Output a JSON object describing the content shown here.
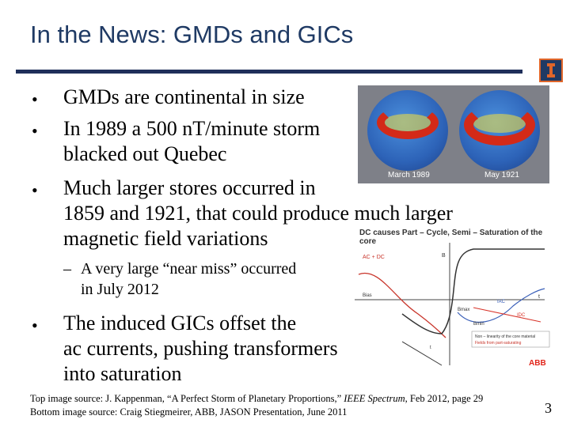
{
  "title": "In the News: GMDs and GICs",
  "bullets": [
    {
      "marker": "•",
      "lines": [
        "GMDs are continental in size"
      ]
    },
    {
      "marker": "•",
      "lines": [
        "In 1989 a 500 nT/minute storm",
        "blacked out Quebec"
      ]
    },
    {
      "marker": "•",
      "lines": [
        "Much larger stores occurred in",
        "1859 and 1921, that could produce much larger",
        "magnetic field variations"
      ]
    },
    {
      "marker": "–",
      "lines": [
        "A very large “near miss” occurred",
        "in July 2012"
      ],
      "sub": true
    },
    {
      "marker": "•",
      "lines": [
        "The induced GICs offset the",
        "ac currents, pushing transformers",
        "into saturation"
      ]
    }
  ],
  "globe_image": {
    "captions": [
      "March 1989",
      "May 1921"
    ]
  },
  "chart_image": {
    "title_lines": [
      "DC causes Part – Cycle, Semi – Saturation of the",
      "core"
    ],
    "labels": [
      "AC + DC",
      "B",
      "Bias",
      "t",
      "Bmax",
      "Bmin",
      "IDC",
      "IAC",
      "t"
    ],
    "legend": [
      "Non – linearity of the core material",
      "Fields from part-saturating"
    ],
    "brand": "ABB"
  },
  "sources": {
    "top_prefix": "Top image source: J. Kappenman, “A Perfect Storm of Planetary Proportions,” ",
    "top_italic": "IEEE Spectrum",
    "top_suffix": ", Feb 2012, page 29",
    "bottom": "Bottom image source: Craig Stiegmeirer, ABB, JASON Presentation, June 2011"
  },
  "page_number": "3",
  "colors": {
    "title": "#1f3a64",
    "rule": "#1f2f5a",
    "accent": "#e0662a"
  }
}
